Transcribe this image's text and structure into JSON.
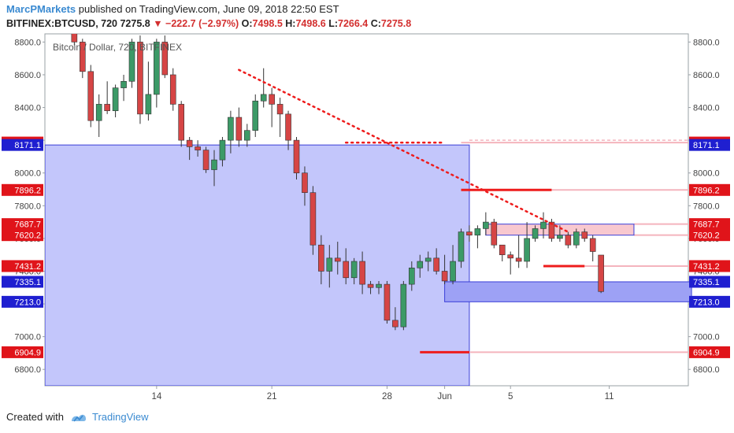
{
  "header": {
    "user": "MarcPMarkets",
    "published": " published on TradingView.com, June 09, 2018 22:50 EST",
    "symbol": "BITFINEX:BTCUSD, 720",
    "last": "7275.8",
    "change": "▼ −222.7 (−2.97%)",
    "open_label": "O:",
    "open": "7498.5",
    "high_label": "H:",
    "high": "7498.6",
    "low_label": "L:",
    "low": "7266.4",
    "close_label": "C:",
    "close": "7275.8"
  },
  "footer": {
    "created_with": "Created with",
    "brand": "TradingView"
  },
  "colors": {
    "up": "#3c9a67",
    "down": "#d64545",
    "box_blue": "#c3c6fb",
    "box_border": "#3b3fd8",
    "zone_pink": "#f8c8cf",
    "level_red": "#ee1c1c",
    "level_pink": "#f4b4bd",
    "label_red": "#e0141a",
    "label_blue": "#1f1fd0",
    "axis_label_bg": "#555555"
  },
  "chart_data": {
    "type": "candlestick",
    "title": "Bitcoin / Dollar, 720, BITFINEX",
    "ylim": [
      6700,
      8850
    ],
    "ytick_labels": [
      "6800.0",
      "7000.0",
      "7200.0",
      "7400.0",
      "7600.0",
      "7800.0",
      "8000.0",
      "8200.0",
      "8400.0",
      "8600.0",
      "8800.0"
    ],
    "x_tick_labels": [
      {
        "label": "14",
        "index": 10
      },
      {
        "label": "21",
        "index": 24
      },
      {
        "label": "28",
        "index": 38
      },
      {
        "label": "Jun",
        "index": 45
      },
      {
        "label": "5",
        "index": 53
      },
      {
        "label": "11",
        "index": 65
      }
    ],
    "candles": [
      [
        8950,
        8980,
        8780,
        8800
      ],
      [
        8800,
        8820,
        8580,
        8620
      ],
      [
        8620,
        8660,
        8280,
        8320
      ],
      [
        8320,
        8480,
        8220,
        8420
      ],
      [
        8420,
        8560,
        8360,
        8380
      ],
      [
        8380,
        8540,
        8340,
        8520
      ],
      [
        8520,
        8600,
        8440,
        8560
      ],
      [
        8560,
        8820,
        8520,
        8800
      ],
      [
        8800,
        8840,
        8300,
        8360
      ],
      [
        8360,
        8680,
        8320,
        8480
      ],
      [
        8480,
        8820,
        8400,
        8800
      ],
      [
        8800,
        8840,
        8580,
        8600
      ],
      [
        8600,
        8640,
        8380,
        8420
      ],
      [
        8420,
        8440,
        8160,
        8200
      ],
      [
        8200,
        8220,
        8080,
        8160
      ],
      [
        8160,
        8200,
        8100,
        8140
      ],
      [
        8140,
        8160,
        8000,
        8020
      ],
      [
        8020,
        8140,
        7920,
        8080
      ],
      [
        8080,
        8220,
        8040,
        8200
      ],
      [
        8200,
        8380,
        8120,
        8340
      ],
      [
        8340,
        8400,
        8160,
        8200
      ],
      [
        8200,
        8300,
        8160,
        8260
      ],
      [
        8260,
        8480,
        8220,
        8440
      ],
      [
        8440,
        8640,
        8400,
        8480
      ],
      [
        8480,
        8520,
        8280,
        8420
      ],
      [
        8420,
        8460,
        8220,
        8360
      ],
      [
        8360,
        8380,
        8140,
        8200
      ],
      [
        8200,
        8220,
        7960,
        8000
      ],
      [
        8000,
        8040,
        7800,
        7880
      ],
      [
        7880,
        7920,
        7500,
        7560
      ],
      [
        7560,
        7620,
        7320,
        7400
      ],
      [
        7400,
        7560,
        7300,
        7480
      ],
      [
        7480,
        7580,
        7380,
        7460
      ],
      [
        7460,
        7540,
        7320,
        7360
      ],
      [
        7360,
        7480,
        7320,
        7460
      ],
      [
        7460,
        7520,
        7260,
        7320
      ],
      [
        7320,
        7340,
        7260,
        7300
      ],
      [
        7300,
        7340,
        7260,
        7320
      ],
      [
        7320,
        7340,
        7080,
        7100
      ],
      [
        7100,
        7180,
        7040,
        7060
      ],
      [
        7060,
        7340,
        7040,
        7320
      ],
      [
        7320,
        7460,
        7280,
        7420
      ],
      [
        7420,
        7500,
        7360,
        7460
      ],
      [
        7460,
        7520,
        7400,
        7480
      ],
      [
        7480,
        7540,
        7380,
        7400
      ],
      [
        7400,
        7500,
        7320,
        7340
      ],
      [
        7340,
        7560,
        7320,
        7460
      ],
      [
        7460,
        7660,
        7420,
        7640
      ],
      [
        7640,
        7680,
        7580,
        7620
      ],
      [
        7620,
        7680,
        7540,
        7660
      ],
      [
        7660,
        7760,
        7620,
        7700
      ],
      [
        7700,
        7720,
        7540,
        7560
      ],
      [
        7560,
        7560,
        7460,
        7500
      ],
      [
        7500,
        7520,
        7380,
        7480
      ],
      [
        7480,
        7620,
        7420,
        7460
      ],
      [
        7460,
        7700,
        7420,
        7600
      ],
      [
        7600,
        7680,
        7580,
        7660
      ],
      [
        7660,
        7760,
        7600,
        7700
      ],
      [
        7700,
        7720,
        7580,
        7600
      ],
      [
        7600,
        7680,
        7580,
        7620
      ],
      [
        7620,
        7640,
        7540,
        7560
      ],
      [
        7560,
        7660,
        7540,
        7640
      ],
      [
        7640,
        7660,
        7580,
        7600
      ],
      [
        7600,
        7620,
        7460,
        7520
      ],
      [
        7498.5,
        7498.6,
        7266.4,
        7275.8
      ]
    ],
    "candle_x_start": 3,
    "price_labels": [
      {
        "value": 8185.9,
        "text": "8185.9",
        "color": "red",
        "side": "both"
      },
      {
        "value": 8171.1,
        "text": "8171.1",
        "color": "blue",
        "side": "both"
      },
      {
        "value": 7896.2,
        "text": "7896.2",
        "color": "red",
        "side": "both"
      },
      {
        "value": 7687.7,
        "text": "7687.7",
        "color": "red",
        "side": "both"
      },
      {
        "value": 7620.2,
        "text": "7620.2",
        "color": "red",
        "side": "both"
      },
      {
        "value": 7431.2,
        "text": "7431.2",
        "color": "red",
        "side": "both"
      },
      {
        "value": 7335.1,
        "text": "7335.1",
        "color": "blue",
        "side": "both"
      },
      {
        "value": 7213.0,
        "text": "7213.0",
        "color": "blue",
        "side": "both"
      },
      {
        "value": 6904.9,
        "text": "6904.9",
        "color": "red",
        "side": "both"
      }
    ],
    "blue_range_box": {
      "x_from_index": -1,
      "x_to_index": 51,
      "price_top": 8171.1,
      "price_bottom": 6700
    },
    "blue_zone": {
      "x_from_index": 48,
      "x_to_index": 78,
      "price_top": 7335.1,
      "price_bottom": 7213.0
    },
    "pink_zone": {
      "x_from_index": 53,
      "x_to_index": 71,
      "price_top": 7687.7,
      "price_bottom": 7620.2
    },
    "levels": [
      {
        "value": 7896.2,
        "x_from_index": 50,
        "x_to_index": 61
      },
      {
        "value": 7431.2,
        "x_from_index": 60,
        "x_to_index": 65
      },
      {
        "value": 6904.9,
        "x_from_index": 45,
        "x_to_index": 51
      }
    ],
    "trendline": {
      "from": {
        "index": 23,
        "value": 8630
      },
      "to": {
        "index": 63,
        "value": 7640
      }
    },
    "dotted_horizontal": {
      "value": 8185.9,
      "x_from_index": 36,
      "x_to_index": 48
    }
  }
}
